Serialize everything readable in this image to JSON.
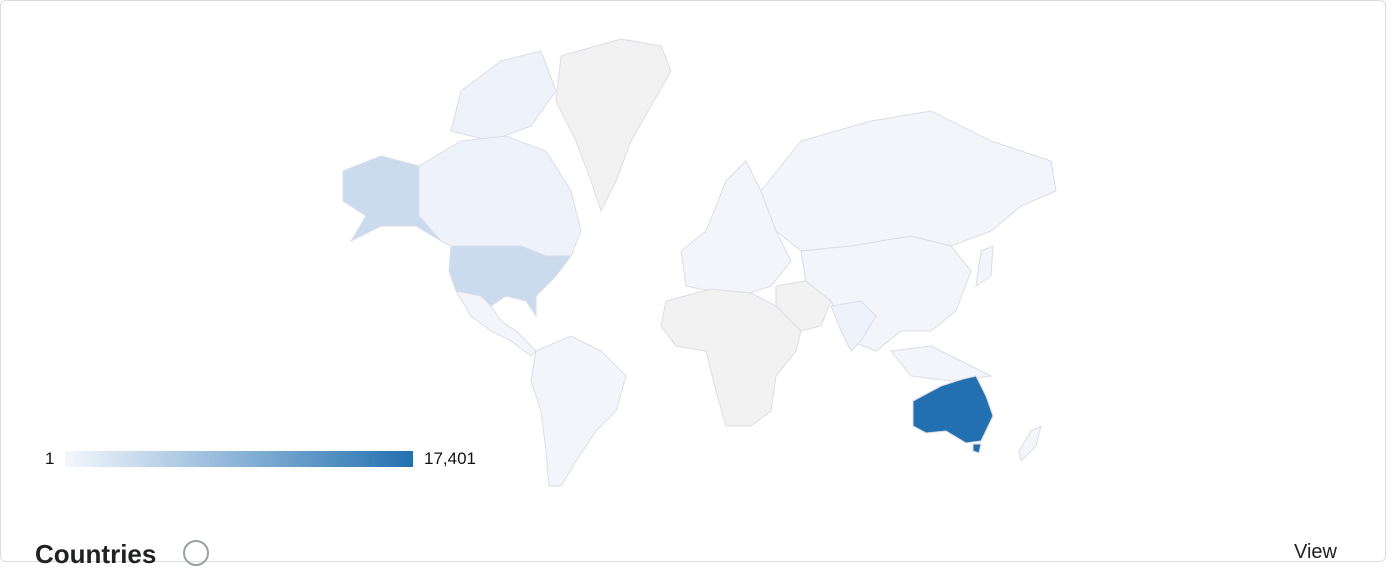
{
  "map": {
    "type": "choropleth",
    "region": "world",
    "colors": {
      "min": "#f4f7fd",
      "max": "#2270b0",
      "no_data": "#f2f2f2",
      "border": "#dcdde6"
    },
    "regions": [
      {
        "name": "Australia",
        "level": "max"
      },
      {
        "name": "United States",
        "level": "low-mid"
      },
      {
        "name": "Canada",
        "level": "low"
      }
    ]
  },
  "legend": {
    "min_label": "1",
    "max_label": "17,401"
  },
  "section": {
    "title": "Countries",
    "view_label": "View"
  }
}
